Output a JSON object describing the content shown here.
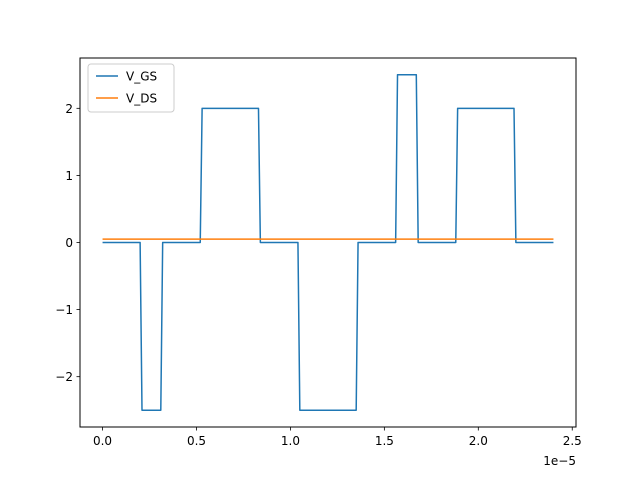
{
  "chart_data": {
    "type": "line",
    "title": "",
    "xlabel": "",
    "ylabel": "",
    "x_offset_label": "1e−5",
    "xlim": [
      -1.2e-06,
      2.52e-05
    ],
    "ylim": [
      -2.75,
      2.75
    ],
    "x_ticks": [
      0,
      5e-06,
      1e-05,
      1.5e-05,
      2e-05,
      2.5e-05
    ],
    "x_tick_labels": [
      "0.0",
      "0.5",
      "1.0",
      "1.5",
      "2.0",
      "2.5"
    ],
    "y_ticks": [
      -2,
      -1,
      0,
      1,
      2
    ],
    "y_tick_labels": [
      "−2",
      "−1",
      "0",
      "1",
      "2"
    ],
    "grid": false,
    "legend_position": "top-left",
    "series": [
      {
        "name": "V_GS",
        "color": "#1f77b4",
        "x": [
          0,
          2e-06,
          2.1e-06,
          3.1e-06,
          3.2e-06,
          5.2e-06,
          5.3e-06,
          8.3e-06,
          8.4e-06,
          1.04e-05,
          1.05e-05,
          1.35e-05,
          1.36e-05,
          1.56e-05,
          1.57e-05,
          1.67e-05,
          1.68e-05,
          1.88e-05,
          1.89e-05,
          2.19e-05,
          2.2e-05,
          2.4e-05
        ],
        "y": [
          0,
          0,
          -2.5,
          -2.5,
          0,
          0,
          2.0,
          2.0,
          0,
          0,
          -2.5,
          -2.5,
          0,
          0,
          2.5,
          2.5,
          0,
          0,
          2.0,
          2.0,
          0,
          0
        ]
      },
      {
        "name": "V_DS",
        "color": "#ff7f0e",
        "x": [
          0,
          2.4e-05
        ],
        "y": [
          0.05,
          0.05
        ]
      }
    ]
  }
}
